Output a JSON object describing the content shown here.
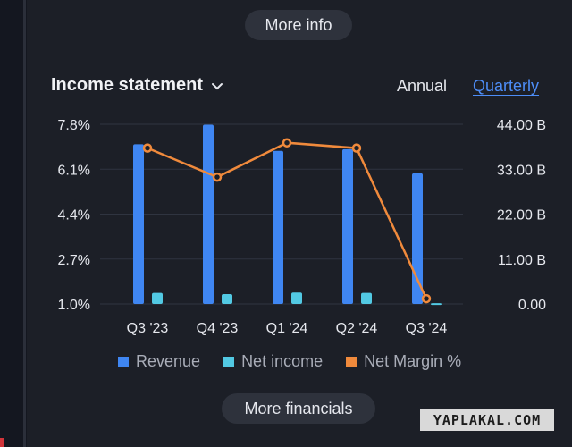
{
  "buttons": {
    "more_info": "More info",
    "more_financials": "More financials"
  },
  "header": {
    "title": "Income statement",
    "tabs": [
      "Annual",
      "Quarterly"
    ],
    "active_tab": "Quarterly"
  },
  "watermark": "YAPLAKAL.COM",
  "colors": {
    "revenue": "#3f86f2",
    "net_income": "#52c9e3",
    "net_margin": "#f08a3c",
    "accent": "#4d8df7",
    "background": "#1c1f27"
  },
  "chart_data": {
    "type": "bar",
    "categories": [
      "Q3 '23",
      "Q4 '23",
      "Q1 '24",
      "Q2 '24",
      "Q3 '24"
    ],
    "series": [
      {
        "name": "Revenue",
        "type": "bar",
        "axis": "right",
        "values": [
          39.1,
          43.9,
          37.5,
          37.9,
          32.0
        ]
      },
      {
        "name": "Net income",
        "type": "bar",
        "axis": "right",
        "values": [
          2.7,
          2.4,
          2.8,
          2.7,
          0.2
        ]
      },
      {
        "name": "Net Margin %",
        "type": "line",
        "axis": "left",
        "values": [
          6.9,
          5.8,
          7.1,
          6.9,
          1.2
        ]
      }
    ],
    "left_axis": {
      "ticks": [
        "7.8%",
        "6.1%",
        "4.4%",
        "2.7%",
        "1.0%"
      ],
      "min": 1.0,
      "max": 7.8
    },
    "right_axis": {
      "ticks": [
        "44.00 B",
        "33.00 B",
        "22.00 B",
        "11.00 B",
        "0.00"
      ],
      "min": 0,
      "max": 44
    },
    "legend_position": "bottom",
    "grid": true
  }
}
